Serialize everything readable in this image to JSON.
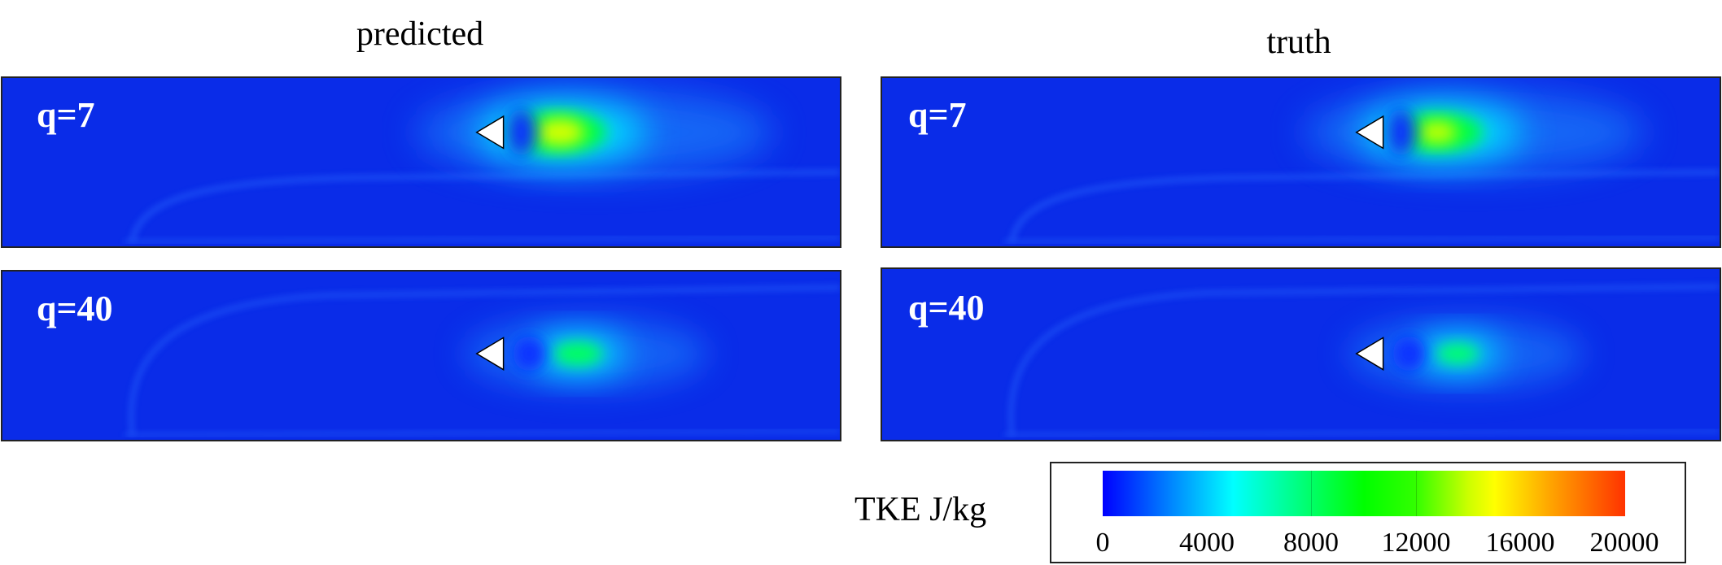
{
  "columns": {
    "left_title": "predicted",
    "right_title": "truth"
  },
  "panels": [
    {
      "label": "q=7"
    },
    {
      "label": "q=40"
    },
    {
      "label": "q=7"
    },
    {
      "label": "q=40"
    }
  ],
  "colorbar": {
    "label": "TKE J/kg",
    "ticks": [
      "0",
      "4000",
      "8000",
      "12000",
      "16000",
      "20000"
    ],
    "range": [
      0,
      20000
    ],
    "colors": [
      "#0000ff",
      "#00ffff",
      "#00ff00",
      "#ffff00",
      "#ff0000"
    ]
  }
}
